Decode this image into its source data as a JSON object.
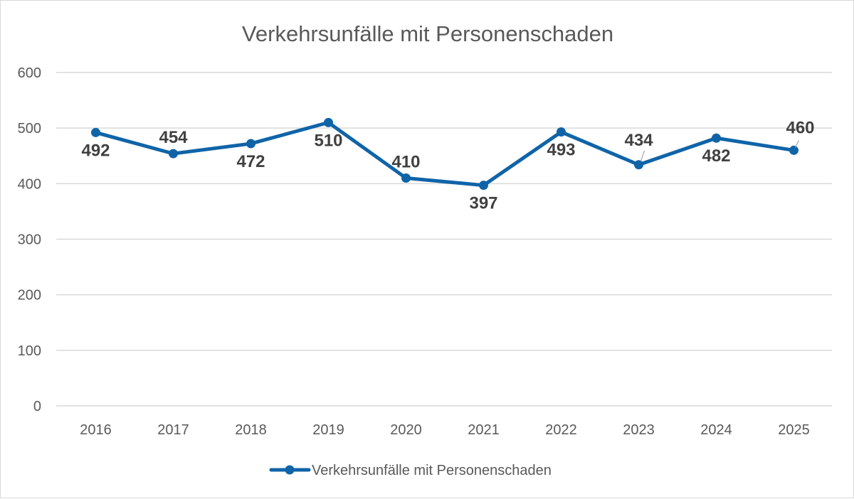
{
  "chart_data": {
    "type": "line",
    "title": "Verkehrsunfälle mit Personenschaden",
    "xlabel": "",
    "ylabel": "",
    "categories": [
      "2016",
      "2017",
      "2018",
      "2019",
      "2020",
      "2021",
      "2022",
      "2023",
      "2024",
      "2025"
    ],
    "series": [
      {
        "name": "Verkehrsunfälle mit Personenschaden",
        "values": [
          492,
          454,
          472,
          510,
          410,
          397,
          493,
          434,
          482,
          460
        ],
        "color": "#0f64a8",
        "label_position": [
          "below",
          "above",
          "below",
          "below",
          "above",
          "below",
          "below",
          "above",
          "below",
          "above"
        ]
      }
    ],
    "ylim": [
      0,
      600
    ],
    "yticks": [
      "0",
      "100",
      "200",
      "300",
      "400",
      "500",
      "600"
    ],
    "grid": true,
    "legend": "bottom"
  }
}
